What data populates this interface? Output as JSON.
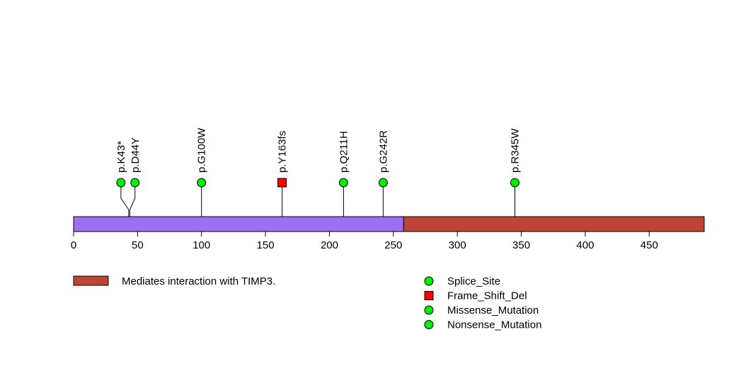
{
  "chart_data": {
    "type": "lollipop",
    "protein_length": 493,
    "xlim": [
      0,
      493
    ],
    "ticks": [
      0,
      50,
      100,
      150,
      200,
      250,
      300,
      350,
      400,
      450
    ],
    "backbone_color": "#9b6ff0",
    "domains": [
      {
        "name": "Mediates interaction with TIMP3.",
        "start": 258,
        "end": 493,
        "color": "#be4535"
      }
    ],
    "mutations": [
      {
        "label": "p.K43*",
        "position": 43,
        "marker_position": 37,
        "type": "Nonsense_Mutation"
      },
      {
        "label": "p.D44Y",
        "position": 44,
        "marker_position": 48,
        "type": "Missense_Mutation"
      },
      {
        "label": "p.G100W",
        "position": 100,
        "marker_position": 100,
        "type": "Missense_Mutation"
      },
      {
        "label": "p.Y163fs",
        "position": 163,
        "marker_position": 163,
        "type": "Frame_Shift_Del"
      },
      {
        "label": "p.Q211H",
        "position": 211,
        "marker_position": 211,
        "type": "Missense_Mutation"
      },
      {
        "label": "p.G242R",
        "position": 242,
        "marker_position": 242,
        "type": "Missense_Mutation"
      },
      {
        "label": "p.R345W",
        "position": 345,
        "marker_position": 345,
        "type": "Missense_Mutation"
      }
    ],
    "legend": [
      {
        "label": "Splice_Site",
        "shape": "circle",
        "color": "#00ee00"
      },
      {
        "label": "Frame_Shift_Del",
        "shape": "square",
        "color": "#ff0000"
      },
      {
        "label": "Missense_Mutation",
        "shape": "circle",
        "color": "#00ee00"
      },
      {
        "label": "Nonsense_Mutation",
        "shape": "circle",
        "color": "#00ee00"
      }
    ],
    "type_colors": {
      "Splice_Site": "#00ee00",
      "Frame_Shift_Del": "#ff0000",
      "Missense_Mutation": "#00ee00",
      "Nonsense_Mutation": "#00ee00"
    }
  }
}
